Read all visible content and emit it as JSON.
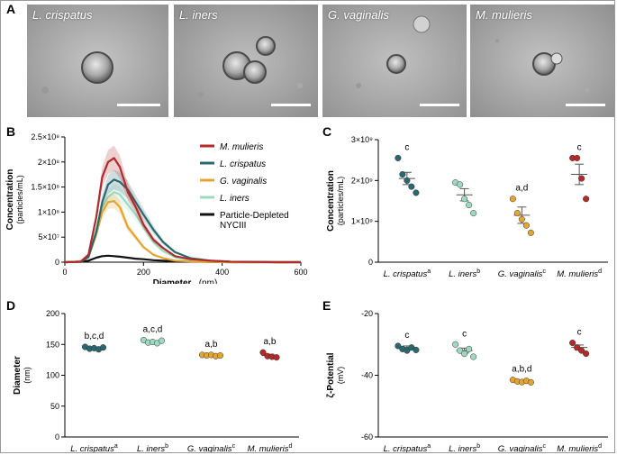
{
  "panels": {
    "a": {
      "letter": "A"
    },
    "b": {
      "letter": "B"
    },
    "c": {
      "letter": "C"
    },
    "d": {
      "letter": "D"
    },
    "e": {
      "letter": "E"
    }
  },
  "em_images": [
    {
      "label": "L. crispatus"
    },
    {
      "label": "L. iners"
    },
    {
      "label": "G. vaginalis"
    },
    {
      "label": "M. mulieris"
    }
  ],
  "colors": {
    "M. mulieris": "#b22a2a",
    "L. crispatus": "#2a6870",
    "G. vaginalis": "#e3a52f",
    "L. iners": "#9dd9c0",
    "Particle-Depleted NYCIII": "#111111"
  },
  "chart_data": [
    {
      "id": "B",
      "type": "line",
      "xlabel": "Diameter",
      "xunit": "(nm)",
      "ylabel": "Concentration",
      "yunit": "(particles/mL)",
      "xlim": [
        0,
        600
      ],
      "ylim": [
        0,
        250000000
      ],
      "xticks": [
        "0",
        "200",
        "400",
        "600"
      ],
      "yticks": [
        {
          "value": 0,
          "label": "0"
        },
        {
          "value": 50000000,
          "label": "5×10⁷"
        },
        {
          "value": 100000000,
          "label": "1×10⁸"
        },
        {
          "value": 150000000,
          "label": "1.5×10⁸"
        },
        {
          "value": 200000000,
          "label": "2×10⁸"
        },
        {
          "value": 250000000,
          "label": "2.5×10⁸"
        }
      ],
      "legend": [
        {
          "name": "M. mulieris",
          "italic": true
        },
        {
          "name": "L. crispatus",
          "italic": true
        },
        {
          "name": "G. vaginalis",
          "italic": true
        },
        {
          "name": "L. iners",
          "italic": true
        },
        {
          "name": "Particle-Depleted",
          "name2": "NYCIII",
          "italic": false
        }
      ],
      "x": [
        0,
        40,
        60,
        80,
        95,
        110,
        125,
        140,
        160,
        180,
        200,
        225,
        250,
        280,
        320,
        370,
        420,
        480,
        540,
        600
      ],
      "series": [
        {
          "name": "M. mulieris",
          "values": [
            0,
            1000000,
            15000000,
            90000000,
            170000000,
            200000000,
            208000000,
            190000000,
            140000000,
            110000000,
            75000000,
            45000000,
            28000000,
            12000000,
            6000000,
            3000000,
            1000000,
            500000,
            0,
            0
          ]
        },
        {
          "name": "L. crispatus",
          "values": [
            0,
            1000000,
            10000000,
            60000000,
            120000000,
            155000000,
            165000000,
            160000000,
            145000000,
            120000000,
            95000000,
            65000000,
            40000000,
            20000000,
            8000000,
            3000000,
            1000000,
            500000,
            0,
            0
          ]
        },
        {
          "name": "G. vaginalis",
          "values": [
            0,
            1000000,
            10000000,
            55000000,
            100000000,
            120000000,
            122000000,
            110000000,
            70000000,
            50000000,
            30000000,
            15000000,
            8000000,
            3000000,
            1500000,
            500000,
            0,
            0,
            0,
            0
          ]
        },
        {
          "name": "L. iners",
          "values": [
            0,
            1000000,
            12000000,
            65000000,
            110000000,
            130000000,
            140000000,
            135000000,
            115000000,
            95000000,
            70000000,
            40000000,
            22000000,
            10000000,
            4000000,
            1000000,
            500000,
            0,
            0,
            0
          ]
        },
        {
          "name": "Particle-Depleted NYCIII",
          "values": [
            0,
            500000,
            3000000,
            9000000,
            12000000,
            13000000,
            12000000,
            11000000,
            9000000,
            7000000,
            6000000,
            4000000,
            3000000,
            2000000,
            1000000,
            500000,
            0,
            0,
            0,
            0
          ]
        }
      ]
    },
    {
      "id": "C",
      "type": "scatter",
      "ylabel": "Concentration",
      "yunit": "(particles/mL)",
      "ylim": [
        0,
        3000000000
      ],
      "yticks": [
        {
          "value": 0,
          "label": "0"
        },
        {
          "value": 1000000000,
          "label": "1×10⁹"
        },
        {
          "value": 2000000000,
          "label": "2×10⁹"
        },
        {
          "value": 3000000000,
          "label": "3×10⁹"
        }
      ],
      "categories": [
        {
          "name": "L. crispatus",
          "sup": "a"
        },
        {
          "name": "L. iners",
          "sup": "b"
        },
        {
          "name": "G. vaginalis",
          "sup": "c"
        },
        {
          "name": "M. mulieris",
          "sup": "d"
        }
      ],
      "groups": [
        {
          "name": "L. crispatus",
          "points": [
            2550000000,
            2150000000,
            2000000000,
            1850000000,
            1700000000
          ],
          "mean": 2050000000,
          "sem": 150000000,
          "annotation": "c"
        },
        {
          "name": "L. iners",
          "points": [
            1950000000,
            1900000000,
            1550000000,
            1400000000,
            1200000000
          ],
          "mean": 1650000000,
          "sem": 150000000,
          "annotation": ""
        },
        {
          "name": "G. vaginalis",
          "points": [
            1550000000,
            1200000000,
            1050000000,
            900000000,
            720000000
          ],
          "mean": 1150000000,
          "sem": 200000000,
          "annotation": "a,d"
        },
        {
          "name": "M. mulieris",
          "points": [
            2550000000,
            2550000000,
            2050000000,
            1550000000
          ],
          "mean": 2150000000,
          "sem": 250000000,
          "annotation": "c"
        }
      ]
    },
    {
      "id": "D",
      "type": "scatter",
      "ylabel": "Diameter",
      "yunit": "(nm)",
      "ylim": [
        0,
        200
      ],
      "yticks": [
        {
          "value": 0,
          "label": "0"
        },
        {
          "value": 50,
          "label": "50"
        },
        {
          "value": 100,
          "label": "100"
        },
        {
          "value": 150,
          "label": "150"
        },
        {
          "value": 200,
          "label": "200"
        }
      ],
      "categories": [
        {
          "name": "L. crispatus",
          "sup": "a"
        },
        {
          "name": "L. iners",
          "sup": "b"
        },
        {
          "name": "G. vaginalis",
          "sup": "c"
        },
        {
          "name": "M. mulieris",
          "sup": "d"
        }
      ],
      "groups": [
        {
          "name": "L. crispatus",
          "points": [
            146,
            143,
            144,
            142,
            145
          ],
          "mean": 144,
          "sem": 1,
          "annotation": "b,c,d"
        },
        {
          "name": "L. iners",
          "points": [
            157,
            153,
            154,
            152,
            156
          ],
          "mean": 154,
          "sem": 1,
          "annotation": "a,c,d"
        },
        {
          "name": "G. vaginalis",
          "points": [
            133,
            132,
            133,
            131,
            132
          ],
          "mean": 132,
          "sem": 0.5,
          "annotation": "a,b"
        },
        {
          "name": "M. mulieris",
          "points": [
            137,
            131,
            130,
            129
          ],
          "mean": 132,
          "sem": 2,
          "annotation": "a,b"
        }
      ]
    },
    {
      "id": "E",
      "type": "scatter",
      "ylabel": "ζ-Potential",
      "yunit": "(mV)",
      "ylim": [
        -60,
        -20
      ],
      "yticks": [
        {
          "value": -60,
          "label": "-60"
        },
        {
          "value": -40,
          "label": "-40"
        },
        {
          "value": -20,
          "label": "-20"
        }
      ],
      "categories": [
        {
          "name": "L. crispatus",
          "sup": "a"
        },
        {
          "name": "L. iners",
          "sup": "b"
        },
        {
          "name": "G. vaginalis",
          "sup": "c"
        },
        {
          "name": "M. mulieris",
          "sup": "d"
        }
      ],
      "groups": [
        {
          "name": "L. crispatus",
          "points": [
            -30.5,
            -31.5,
            -32,
            -31,
            -31.8
          ],
          "mean": -31,
          "sem": 0.5,
          "annotation": "c"
        },
        {
          "name": "L. iners",
          "points": [
            -30,
            -32,
            -33,
            -31.5,
            -34
          ],
          "mean": -32,
          "sem": 0.8,
          "annotation": "c"
        },
        {
          "name": "G. vaginalis",
          "points": [
            -41.5,
            -42,
            -42.2,
            -41.8,
            -42.3
          ],
          "mean": -42,
          "sem": 0.3,
          "annotation": "a,b,d"
        },
        {
          "name": "M. mulieris",
          "points": [
            -29.5,
            -31,
            -32,
            -33
          ],
          "mean": -31,
          "sem": 0.8,
          "annotation": "c"
        }
      ]
    }
  ]
}
